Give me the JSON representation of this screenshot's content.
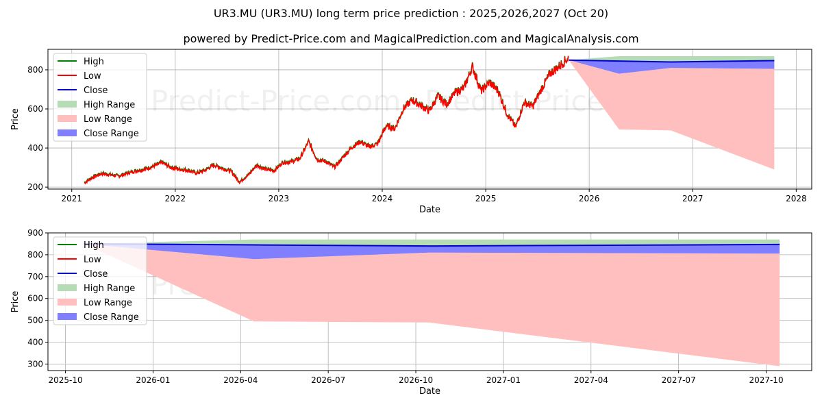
{
  "title": "UR3.MU (UR3.MU) long term price prediction : 2025,2026,2027 (Oct 20)",
  "subtitle": "powered by Predict-Price.com and MagicalPrediction.com and MagicalAnalysis.com",
  "watermark": "Predict-Price.com",
  "colors": {
    "high": "#008000",
    "low": "#ff0000",
    "close": "#0000cc",
    "high_range": "#b5dcb5",
    "low_range": "#ffbfbf",
    "close_range": "#7f7fff"
  },
  "legend": [
    "High",
    "Low",
    "Close",
    "High Range",
    "Low Range",
    "Close Range"
  ],
  "chart_data": [
    {
      "type": "line",
      "xlabel": "Date",
      "ylabel": "Price",
      "xlim": [
        2020.77,
        2028.15
      ],
      "ylim": [
        190,
        905
      ],
      "xticks": [
        "2021",
        "2022",
        "2023",
        "2024",
        "2025",
        "2026",
        "2027",
        "2028"
      ],
      "yticks": [
        200,
        400,
        600,
        800
      ],
      "grid": true,
      "legend": "upper-left",
      "history": [
        [
          "2021-02",
          220
        ],
        [
          "2021-03",
          250
        ],
        [
          "2021-04",
          268
        ],
        [
          "2021-05",
          262
        ],
        [
          "2021-06",
          255
        ],
        [
          "2021-07",
          270
        ],
        [
          "2021-08",
          282
        ],
        [
          "2021-09",
          290
        ],
        [
          "2021-10",
          305
        ],
        [
          "2021-11",
          325
        ],
        [
          "2021-12",
          300
        ],
        [
          "2022-01",
          290
        ],
        [
          "2022-02",
          285
        ],
        [
          "2022-03",
          270
        ],
        [
          "2022-04",
          285
        ],
        [
          "2022-05",
          312
        ],
        [
          "2022-06",
          295
        ],
        [
          "2022-07",
          280
        ],
        [
          "2022-08",
          225
        ],
        [
          "2022-09",
          260
        ],
        [
          "2022-10",
          312
        ],
        [
          "2022-11",
          290
        ],
        [
          "2022-12",
          282
        ],
        [
          "2023-01",
          325
        ],
        [
          "2023-02",
          328
        ],
        [
          "2023-03",
          345
        ],
        [
          "2023-04",
          432
        ],
        [
          "2023-05",
          340
        ],
        [
          "2023-06",
          330
        ],
        [
          "2023-07",
          300
        ],
        [
          "2023-08",
          352
        ],
        [
          "2023-09",
          402
        ],
        [
          "2023-10",
          432
        ],
        [
          "2023-11",
          405
        ],
        [
          "2023-12",
          420
        ],
        [
          "2024-01",
          512
        ],
        [
          "2024-02",
          498
        ],
        [
          "2024-03",
          600
        ],
        [
          "2024-04",
          645
        ],
        [
          "2024-05",
          618
        ],
        [
          "2024-06",
          588
        ],
        [
          "2024-07",
          665
        ],
        [
          "2024-08",
          622
        ],
        [
          "2024-09",
          682
        ],
        [
          "2024-10",
          705
        ],
        [
          "2024-11",
          815
        ],
        [
          "2024-12",
          690
        ],
        [
          "2025-01",
          735
        ],
        [
          "2025-02",
          690
        ],
        [
          "2025-03",
          575
        ],
        [
          "2025-04",
          505
        ],
        [
          "2025-05",
          632
        ],
        [
          "2025-06",
          612
        ],
        [
          "2025-07",
          700
        ],
        [
          "2025-08",
          780
        ],
        [
          "2025-09",
          815
        ],
        [
          "2025-10-20",
          862
        ]
      ],
      "forecast": [
        {
          "date": "2025-10-20",
          "high": 850,
          "close": 850,
          "close_low": 850,
          "low": 850
        },
        {
          "date": "2026-04-15",
          "high": 870,
          "close": 845,
          "close_low": 780,
          "low": 495
        },
        {
          "date": "2026-10-15",
          "high": 870,
          "close": 840,
          "close_low": 810,
          "low": 490
        },
        {
          "date": "2027-10-15",
          "high": 870,
          "close": 847,
          "close_low": 805,
          "low": 290
        }
      ]
    },
    {
      "type": "area",
      "xlabel": "Date",
      "ylabel": "Price",
      "xlim": [
        2025.7,
        2027.88
      ],
      "ylim": [
        270,
        900
      ],
      "xticks": [
        "2025-10",
        "2026-01",
        "2026-04",
        "2026-07",
        "2026-10",
        "2027-01",
        "2027-04",
        "2027-07",
        "2027-10"
      ],
      "yticks": [
        300,
        400,
        500,
        600,
        700,
        800,
        900
      ],
      "grid": true,
      "legend": "upper-left"
    }
  ]
}
